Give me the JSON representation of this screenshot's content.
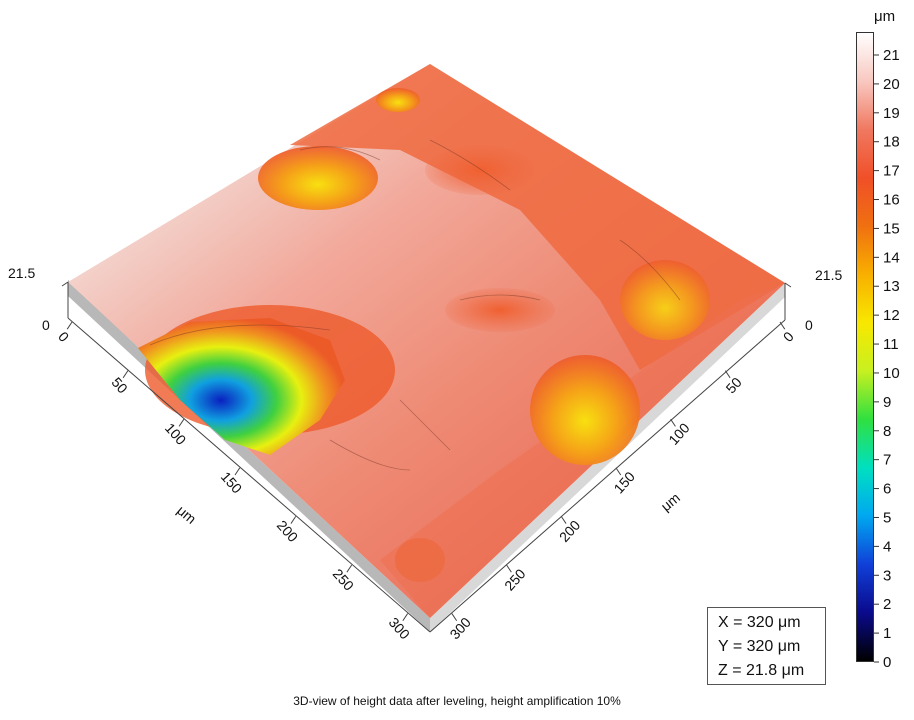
{
  "caption": "3D-view of height data after leveling, height amplification 10%",
  "colorbar": {
    "unit": "μm",
    "min": 0,
    "max": 21,
    "ticks": [
      "0",
      "1",
      "2",
      "3",
      "4",
      "5",
      "6",
      "7",
      "8",
      "9",
      "10",
      "11",
      "12",
      "13",
      "14",
      "15",
      "16",
      "17",
      "18",
      "19",
      "20",
      "21"
    ],
    "colors": [
      "#000000",
      "#0a0a8c",
      "#1040d8",
      "#00a8f0",
      "#00e0c0",
      "#30e040",
      "#c8f020",
      "#f8e800",
      "#f8b000",
      "#f07010",
      "#f05028",
      "#f07860",
      "#f8c8c0",
      "#ffffff"
    ]
  },
  "axes": {
    "left": {
      "unit": "μm",
      "ticks": [
        "0",
        "50",
        "100",
        "150",
        "200",
        "250",
        "300"
      ]
    },
    "right": {
      "unit": "μm",
      "ticks": [
        "0",
        "50",
        "100",
        "150",
        "200",
        "250",
        "300"
      ]
    },
    "z_left": {
      "ticks": [
        "21.5",
        "0"
      ]
    },
    "z_right": {
      "ticks": [
        "21.5",
        "0"
      ]
    }
  },
  "dimensions": {
    "x": "X = 320 μm",
    "y": "Y = 320 μm",
    "z": "Z = 21.8 μm"
  }
}
